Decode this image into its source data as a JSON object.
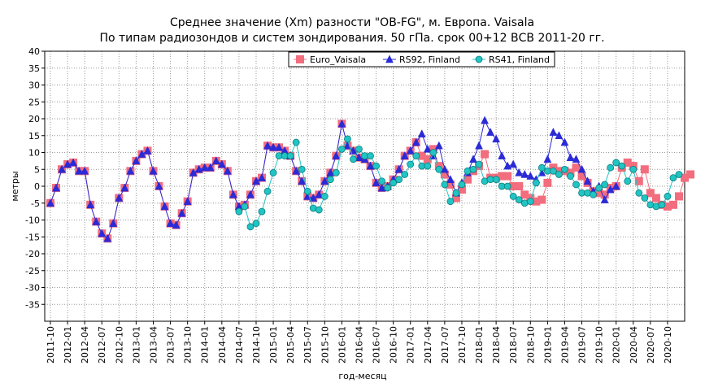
{
  "chart_data": {
    "type": "line",
    "title": "Среднее значение (Xm) разности \"OB-FG\", м. Европа. Vaisala",
    "subtitle": "По типам радиозондов и систем зондирования. 50 гПа. срок 00+12 ВСВ 2011-20 гг.",
    "xlabel": "год-месяц",
    "ylabel": "метры",
    "ylim": [
      -40,
      40
    ],
    "yticks": [
      40,
      35,
      30,
      25,
      20,
      15,
      10,
      5,
      0,
      -5,
      -10,
      -15,
      -20,
      -25,
      -30,
      -35
    ],
    "x_start": "2011-10",
    "x_end": "2020-12",
    "x_tick_labels": [
      "2011-10",
      "2012-01",
      "2012-04",
      "2012-07",
      "2012-10",
      "2013-01",
      "2013-04",
      "2013-07",
      "2013-10",
      "2014-01",
      "2014-04",
      "2014-07",
      "2014-10",
      "2015-01",
      "2015-04",
      "2015-07",
      "2015-10",
      "2016-01",
      "2016-04",
      "2016-07",
      "2016-10",
      "2017-01",
      "2017-04",
      "2017-07",
      "2017-10",
      "2018-01",
      "2018-04",
      "2018-07",
      "2018-10",
      "2019-01",
      "2019-04",
      "2019-07",
      "2019-10",
      "2020-01",
      "2020-04",
      "2020-07",
      "2020-10"
    ],
    "grid": true,
    "legend_position": "top-right",
    "series": [
      {
        "name": "Euro_Vaisala",
        "color": "#f26d7d",
        "marker": "square",
        "start": "2011-10",
        "values": [
          -5,
          -0.5,
          5,
          6.5,
          7,
          4.5,
          4.5,
          -5.5,
          -10.5,
          -14,
          -15.5,
          -11,
          -3.5,
          -0.5,
          4.5,
          7.5,
          9.5,
          10.5,
          4.5,
          0,
          -6,
          -11,
          -11.5,
          -8,
          -4.5,
          4,
          5,
          5.5,
          5.5,
          7.5,
          6.5,
          4.5,
          -2.5,
          -6,
          -5.5,
          -2.5,
          1.5,
          2.5,
          12,
          11.5,
          11.5,
          10.5,
          9,
          4.5,
          1.5,
          -3,
          -3.5,
          -2.5,
          1.5,
          4,
          9,
          18.5,
          12,
          10.5,
          8.5,
          8,
          6,
          1,
          -0.5,
          0,
          2,
          5,
          9,
          10.5,
          13,
          9,
          8,
          11,
          6,
          3.5,
          0.5,
          -3.5,
          -1,
          2,
          4.5,
          6,
          9.5,
          2.5,
          2.5,
          3,
          3,
          0,
          0,
          -2.5,
          -3.5,
          -4.5,
          -4,
          1,
          5.5,
          4.5,
          4.5,
          4,
          5.5,
          3,
          1,
          -1.5,
          -2,
          -2.5,
          -0.5,
          0,
          5.5,
          7,
          6,
          1.5,
          5,
          -2,
          -3.5,
          -5.5,
          -6,
          -5.5,
          -3,
          2.5,
          3.5
        ]
      },
      {
        "name": "RS92, Finland",
        "color": "#2a2ad6",
        "marker": "triangle",
        "start": "2011-10",
        "values": [
          -5,
          -0.5,
          5,
          6.5,
          7,
          4.5,
          4.5,
          -5.5,
          -10.5,
          -14,
          -15.5,
          -11,
          -3.5,
          -0.5,
          4.5,
          7.5,
          9.5,
          10.5,
          4.5,
          0,
          -6,
          -11,
          -11.5,
          -8,
          -4.5,
          4,
          5,
          5.5,
          5.5,
          7.5,
          6.5,
          4.5,
          -2.5,
          -6,
          -5.5,
          -2.5,
          1.5,
          2.5,
          12,
          11.5,
          11.5,
          10.5,
          9,
          4.5,
          1.5,
          -3,
          -3.5,
          -2.5,
          1.5,
          4,
          9,
          18.5,
          12,
          10.5,
          8.5,
          8,
          6,
          1,
          -0.5,
          0,
          2,
          5,
          9,
          10.5,
          13,
          15.5,
          11,
          9,
          12,
          5,
          2,
          -2,
          1,
          4,
          8,
          12,
          19.5,
          16,
          14,
          9,
          6,
          6.5,
          4,
          3.5,
          3,
          2,
          4,
          8,
          16,
          15,
          13,
          8.5,
          8,
          5,
          1.5,
          -1.5,
          0,
          -4,
          -1,
          0
        ]
      },
      {
        "name": "RS41, Finland",
        "color": "#22c4c4",
        "marker": "circle",
        "start": "2014-07",
        "values": [
          -7.5,
          -6,
          -12,
          -11,
          -7.5,
          -1.5,
          4,
          9,
          9,
          9,
          13,
          5,
          -1.5,
          -6.5,
          -7,
          -3,
          2,
          4,
          11,
          14,
          8,
          11,
          9,
          9,
          6,
          1.5,
          -0.5,
          1,
          2,
          3.5,
          6.5,
          9,
          6,
          6,
          10,
          5,
          0.5,
          -4.5,
          -2,
          0.5,
          4.5,
          5,
          6.5,
          1.5,
          2,
          2,
          0,
          0,
          -3,
          -4,
          -5,
          -4.5,
          1,
          5.5,
          4.5,
          4.5,
          3.5,
          5,
          3,
          0.5,
          -2,
          -2,
          -2.5,
          -0.5,
          0.5,
          5.5,
          7,
          6,
          1.5,
          5,
          -2,
          -3.5,
          -5.5,
          -6,
          -5.5,
          -3,
          2.5,
          3.5
        ]
      }
    ]
  }
}
